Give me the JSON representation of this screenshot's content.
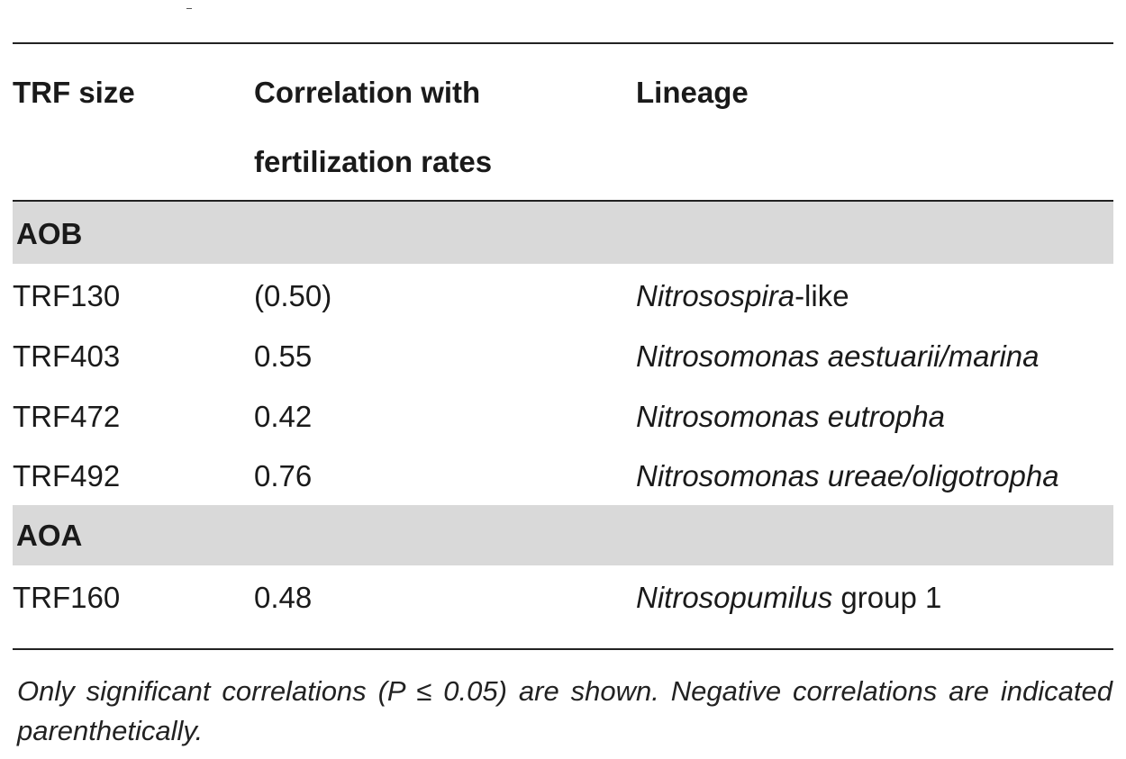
{
  "table": {
    "headers": {
      "trf_size": "TRF size",
      "correlation_line1": "Correlation with",
      "correlation_line2": "fertilization rates",
      "lineage": "Lineage"
    },
    "groups": [
      {
        "name": "AOB",
        "rows": [
          {
            "trf": "TRF130",
            "correlation": "(0.50)",
            "lineage_italic": "Nitrosospira",
            "lineage_suffix": "-like"
          },
          {
            "trf": "TRF403",
            "correlation": "0.55",
            "lineage_italic": "Nitrosomonas aestuarii/marina",
            "lineage_suffix": ""
          },
          {
            "trf": "TRF472",
            "correlation": "0.42",
            "lineage_italic": "Nitrosomonas eutropha",
            "lineage_suffix": ""
          },
          {
            "trf": "TRF492",
            "correlation": "0.76",
            "lineage_italic": "Nitrosomonas ureae/oligotropha",
            "lineage_suffix": ""
          }
        ]
      },
      {
        "name": "AOA",
        "rows": [
          {
            "trf": "TRF160",
            "correlation": "0.48",
            "lineage_italic": "Nitrosopumilus",
            "lineage_suffix": " group 1"
          }
        ]
      }
    ],
    "footnote": "Only significant correlations (P ≤ 0.05) are shown. Negative correlations are indicated parenthetically."
  }
}
